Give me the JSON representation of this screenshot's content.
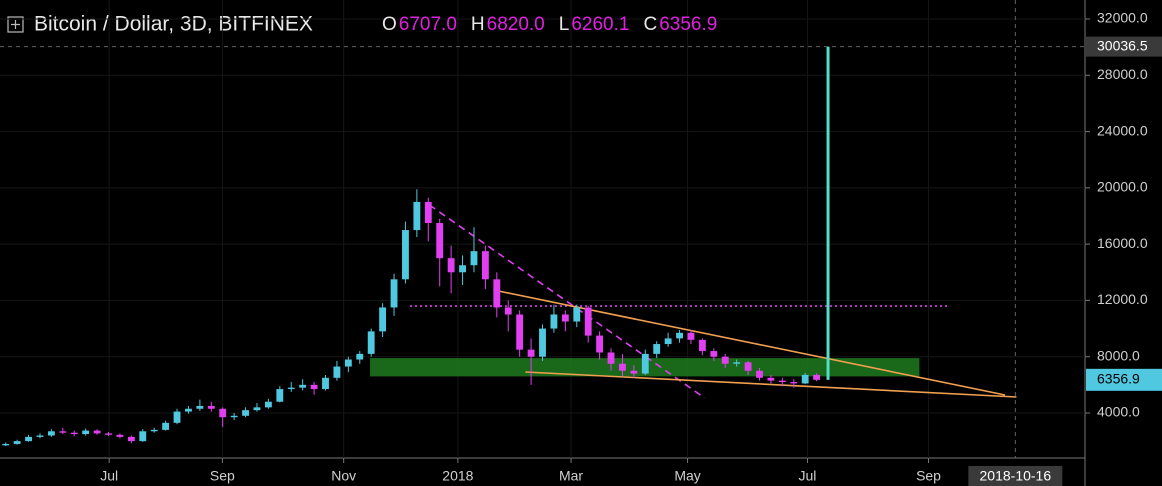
{
  "chart_data": {
    "type": "candlestick",
    "title": "Bitcoin / Dollar, 3D, BITFINEX",
    "ohlc_header": [
      {
        "label": "O",
        "value": "6707.0"
      },
      {
        "label": "H",
        "value": "6820.0"
      },
      {
        "label": "L",
        "value": "6260.1"
      },
      {
        "label": "C",
        "value": "6356.9"
      }
    ],
    "up_color": "#4fc8e0",
    "down_color": "#e040f0",
    "open": [
      1700,
      1800,
      2000,
      2300,
      2400,
      2700,
      2600,
      2500,
      2750,
      2550,
      2450,
      2300,
      2000,
      2700,
      2800,
      3300,
      4100,
      4300,
      4500,
      4300,
      3700,
      3800,
      4200,
      4400,
      4800,
      5700,
      5800,
      6000,
      5700,
      6500,
      7300,
      7800,
      8200,
      9800,
      11500,
      13500,
      17000,
      19000,
      17500,
      15000,
      14000,
      14500,
      15500,
      13500,
      11500,
      11000,
      8500,
      8000,
      10000,
      11000,
      10500,
      11500,
      9500,
      8300,
      7500,
      7000,
      6800,
      8200,
      8900,
      9300,
      9700,
      9200,
      8400,
      8000,
      7500,
      7600,
      7000,
      6500,
      6300,
      6200,
      6100,
      6707
    ],
    "high": [
      1900,
      2100,
      2450,
      2550,
      2850,
      2950,
      2750,
      2900,
      2850,
      2650,
      2550,
      2400,
      2850,
      2950,
      3450,
      4300,
      4500,
      4950,
      4800,
      4400,
      4000,
      4400,
      4700,
      5000,
      5900,
      6200,
      6400,
      6200,
      6700,
      7700,
      8000,
      8400,
      10000,
      11800,
      13900,
      17600,
      19900,
      19300,
      17800,
      15900,
      15200,
      17200,
      15900,
      14000,
      12000,
      11300,
      9300,
      10300,
      11700,
      11300,
      11700,
      11600,
      9800,
      8600,
      8200,
      7400,
      8500,
      9100,
      9700,
      9900,
      9900,
      9300,
      8600,
      8200,
      7800,
      7700,
      7200,
      6700,
      6500,
      6400,
      6850,
      6820
    ],
    "low": [
      1650,
      1750,
      1950,
      2200,
      2300,
      2500,
      2350,
      2400,
      2450,
      2350,
      2200,
      1850,
      1950,
      2600,
      2750,
      3200,
      3950,
      4150,
      4100,
      3000,
      3500,
      3700,
      4100,
      4300,
      4750,
      5500,
      5600,
      5300,
      5600,
      6300,
      6900,
      7500,
      8000,
      9400,
      10900,
      13200,
      16500,
      16200,
      13000,
      12500,
      13100,
      14000,
      12800,
      10800,
      9800,
      8000,
      6000,
      7700,
      9700,
      9800,
      10100,
      9000,
      7800,
      7000,
      6600,
      6500,
      6700,
      7900,
      8700,
      9000,
      8900,
      8100,
      7700,
      7200,
      7300,
      6700,
      6300,
      6100,
      5900,
      5800,
      6050,
      6260.1
    ],
    "close": [
      1800,
      2000,
      2300,
      2400,
      2700,
      2600,
      2500,
      2750,
      2550,
      2450,
      2300,
      2000,
      2700,
      2800,
      3300,
      4100,
      4300,
      4500,
      4300,
      3700,
      3800,
      4200,
      4400,
      4800,
      5700,
      5800,
      6000,
      5700,
      6500,
      7300,
      7800,
      8200,
      9800,
      11500,
      13500,
      17000,
      19000,
      17500,
      15000,
      14000,
      14500,
      15500,
      13500,
      11500,
      11000,
      8500,
      8000,
      10000,
      11000,
      10500,
      11500,
      9500,
      8300,
      7500,
      7000,
      6800,
      8200,
      8900,
      9300,
      9700,
      9200,
      8400,
      8000,
      7500,
      7600,
      7000,
      6500,
      6300,
      6200,
      6100,
      6707,
      6356.9
    ],
    "last_price_label": "6356.9",
    "xlim": [
      0,
      95
    ],
    "xticks": [
      {
        "value": 9.56,
        "label": "Jul"
      },
      {
        "value": 19.47,
        "label": "Sep"
      },
      {
        "value": 30.09,
        "label": "Nov"
      },
      {
        "value": 40.09,
        "label": "2018"
      },
      {
        "value": 50,
        "label": "Mar"
      },
      {
        "value": 60.2,
        "label": "May"
      },
      {
        "value": 70.7,
        "label": "Jul"
      },
      {
        "value": 81.3,
        "label": "Sep"
      }
    ],
    "ylim": [
      801,
      33350
    ],
    "yticks": [
      {
        "value": 4000,
        "label": "4000.0"
      },
      {
        "value": 8000,
        "label": "8000.0"
      },
      {
        "value": 12000,
        "label": "12000.0"
      },
      {
        "value": 16000,
        "label": "16000.0"
      },
      {
        "value": 20000,
        "label": "20000.0"
      },
      {
        "value": 24000,
        "label": "24000.0"
      },
      {
        "value": 28000,
        "label": "28000.0"
      },
      {
        "value": 32000,
        "label": "32000.0"
      }
    ],
    "grid": true,
    "spike": {
      "x": 72.5,
      "value": 30036.5,
      "label": "30036.5",
      "color": "#4fe0c8"
    },
    "cursor": {
      "x": 88.9,
      "label": "2018-10-16"
    },
    "drawings": [
      {
        "kind": "zone",
        "x": [
          32.4,
          80.5
        ],
        "y": [
          6600,
          7900
        ],
        "color": "#1f7a1f"
      },
      {
        "kind": "line",
        "x": [
          35.9,
          83.2
        ],
        "y": [
          11600,
          11600
        ],
        "color": "#e040f0",
        "dash": "2 3"
      },
      {
        "kind": "line",
        "x": [
          37.6,
          61.7
        ],
        "y": [
          18781,
          5064
        ],
        "color": "#e040f0",
        "dash": "7 5"
      },
      {
        "kind": "line",
        "x": [
          43.2,
          88.0
        ],
        "y": [
          12741,
          5280
        ],
        "color": "#f0a050",
        "dash": "none"
      },
      {
        "kind": "line",
        "x": [
          46.0,
          89.0
        ],
        "y": [
          6913,
          5136
        ],
        "color": "#f0a050",
        "dash": "none"
      }
    ]
  }
}
